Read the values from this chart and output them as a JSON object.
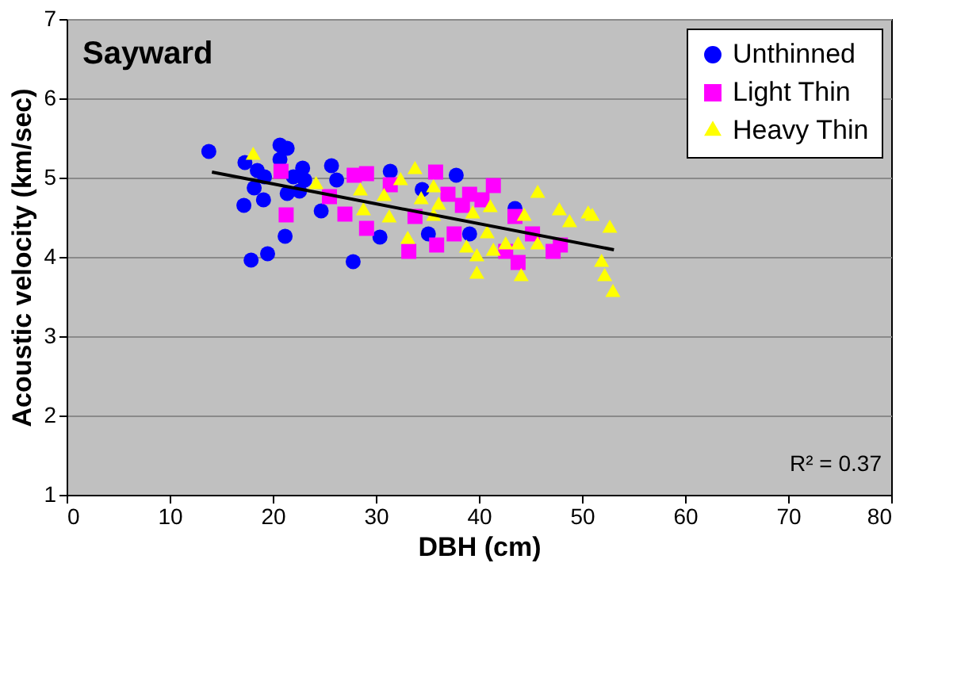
{
  "chart_data": {
    "type": "scatter",
    "xlabel": "DBH (cm)",
    "ylabel": "Acoustic velocity (km/sec)",
    "xlim": [
      0,
      80
    ],
    "xticks": [
      0,
      10,
      20,
      30,
      40,
      50,
      60,
      70,
      80
    ],
    "ylim": [
      1,
      7
    ],
    "yticks": [
      1,
      2,
      3,
      4,
      5,
      6,
      7
    ],
    "grid": "y",
    "legend": "top right",
    "annotations": [
      "Sayward",
      "R² = 0.37"
    ],
    "series": [
      {
        "name": "Unthinned",
        "color": "#0000ff",
        "marker": "circle",
        "x": [
          13.8,
          17.2,
          17.9,
          19.5,
          21.2,
          17.3,
          18.2,
          19.1,
          19.2,
          20.7,
          21.4,
          20.7,
          21.4,
          22.9,
          22.6,
          23.1,
          24.7,
          25.7,
          26.2,
          27.8,
          30.4,
          31.4,
          34.5,
          35.1,
          37.8,
          39.1,
          43.5,
          22.0,
          18.5
        ],
        "values": [
          5.33,
          4.65,
          3.96,
          4.04,
          4.26,
          5.19,
          4.87,
          4.72,
          5.01,
          5.41,
          5.37,
          5.23,
          4.8,
          5.12,
          4.83,
          4.97,
          4.58,
          5.15,
          4.97,
          3.94,
          4.25,
          5.08,
          4.85,
          4.29,
          5.03,
          4.29,
          4.61,
          5.01,
          5.09
        ]
      },
      {
        "name": "Light Thin",
        "color": "#ff00ff",
        "marker": "square",
        "x": [
          20.8,
          21.3,
          25.5,
          27.0,
          27.9,
          29.1,
          29.1,
          31.4,
          33.2,
          33.8,
          35.8,
          35.9,
          37.0,
          37.6,
          38.4,
          39.1,
          40.3,
          41.4,
          42.6,
          43.5,
          43.8,
          45.2,
          47.2,
          47.9
        ],
        "values": [
          5.08,
          4.53,
          4.76,
          4.54,
          5.03,
          5.05,
          4.36,
          4.91,
          4.07,
          4.51,
          5.07,
          4.15,
          4.79,
          4.29,
          4.65,
          4.79,
          4.72,
          4.9,
          4.07,
          4.51,
          3.93,
          4.29,
          4.07,
          4.15
        ]
      },
      {
        "name": "Heavy Thin",
        "color": "#ffff00",
        "marker": "triangle",
        "x": [
          18.1,
          24.2,
          28.5,
          28.8,
          30.8,
          31.3,
          32.4,
          33.1,
          33.8,
          34.4,
          35.6,
          36.1,
          35.6,
          38.8,
          39.4,
          39.8,
          39.8,
          41.1,
          41.4,
          40.8,
          42.6,
          43.8,
          44.1,
          44.4,
          45.7,
          45.7,
          47.8,
          48.8,
          50.6,
          51.0,
          51.9,
          52.2,
          52.7,
          53.0
        ],
        "values": [
          5.28,
          4.91,
          4.83,
          4.58,
          4.76,
          4.49,
          4.96,
          4.22,
          5.1,
          4.72,
          4.87,
          4.65,
          4.51,
          4.11,
          4.54,
          3.78,
          4.0,
          4.62,
          4.07,
          4.29,
          4.15,
          4.15,
          3.75,
          4.51,
          4.8,
          4.15,
          4.58,
          4.43,
          4.54,
          4.51,
          3.93,
          3.75,
          4.36,
          3.55
        ]
      },
      {
        "type": "line",
        "color": "#000000",
        "x": [
          14.1,
          53.1
        ],
        "values": [
          5.07,
          4.09
        ]
      }
    ]
  }
}
